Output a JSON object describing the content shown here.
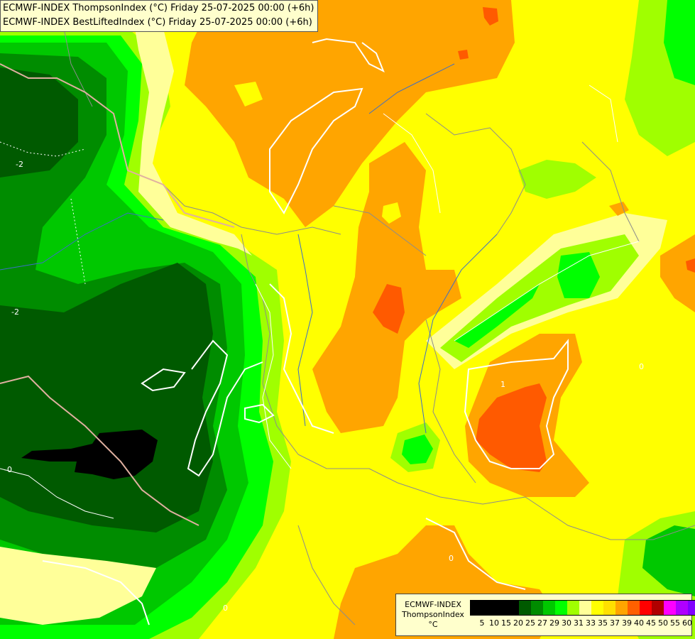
{
  "header": {
    "line1": "ECMWF-INDEX ThompsonIndex (°C) Friday 25-07-2025 00:00 (+6h)",
    "line2": "ECMWF-INDEX BestLiftedIndex (°C) Friday 25-07-2025 00:00 (+6h)"
  },
  "legend": {
    "title": "ECMWF-INDEX",
    "variable": "ThompsonIndex",
    "unit": "°C",
    "colors": [
      "#000000",
      "#000000",
      "#000000",
      "#000000",
      "#005a00",
      "#008c00",
      "#00c800",
      "#00ff00",
      "#a0ff00",
      "#ffff99",
      "#ffff00",
      "#ffe000",
      "#ffa500",
      "#ff6000",
      "#ff0000",
      "#b00000",
      "#ff00ff",
      "#b000ff",
      "#8000ff",
      "#0000ff"
    ],
    "ticks": [
      "5",
      "10",
      "15",
      "20",
      "25",
      "27",
      "29",
      "30",
      "31",
      "33",
      "35",
      "37",
      "39",
      "40",
      "45",
      "50",
      "55",
      "60"
    ]
  },
  "map": {
    "contour_labels": [
      "-2",
      "-0",
      "-2",
      "0",
      "1",
      "0",
      "0"
    ]
  },
  "palette": {
    "black": "#000000",
    "dark_green": "#005a00",
    "green": "#008c00",
    "med_green": "#00c800",
    "bright_green": "#00ff00",
    "yellow_green": "#a0ff00",
    "light_yellow": "#ffff99",
    "yellow": "#ffff00",
    "orange": "#ffa500",
    "red_orange": "#ff5a00"
  }
}
